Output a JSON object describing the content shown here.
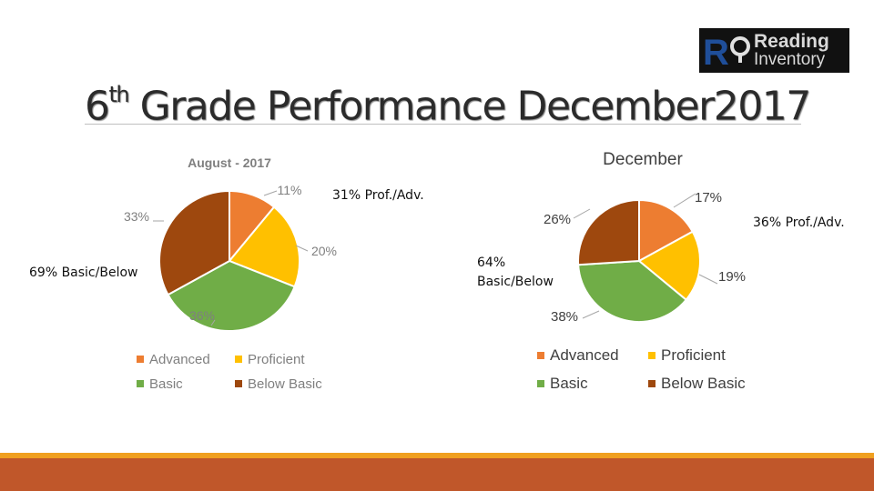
{
  "page": {
    "title_main": "6",
    "title_sup": "th",
    "title_rest": " Grade Performance December2017",
    "logo": {
      "line1": "Reading",
      "line2": "Inventory"
    }
  },
  "notes": {
    "aug_prof": "31% Prof./Adv.",
    "aug_basic": "69% Basic/Below",
    "dec_prof": "36% Prof./Adv.",
    "dec_basic_1": "64%",
    "dec_basic_2": "Basic/Below"
  },
  "colors": {
    "Advanced": "#ed7d31",
    "Proficient": "#ffc000",
    "Basic": "#70ad47",
    "Below Basic": "#9e480e"
  },
  "chart_data": [
    {
      "type": "pie",
      "title": "August - 2017",
      "categories": [
        "Advanced",
        "Proficient",
        "Basic",
        "Below Basic"
      ],
      "values": [
        11,
        20,
        36,
        33
      ],
      "data_labels": [
        "11%",
        "20%",
        "36%",
        "33%"
      ],
      "legend": "bottom"
    },
    {
      "type": "pie",
      "title": "December",
      "categories": [
        "Advanced",
        "Proficient",
        "Basic",
        "Below Basic"
      ],
      "values": [
        17,
        19,
        38,
        26
      ],
      "data_labels": [
        "17%",
        "19%",
        "38%",
        "26%"
      ],
      "legend": "bottom"
    }
  ]
}
